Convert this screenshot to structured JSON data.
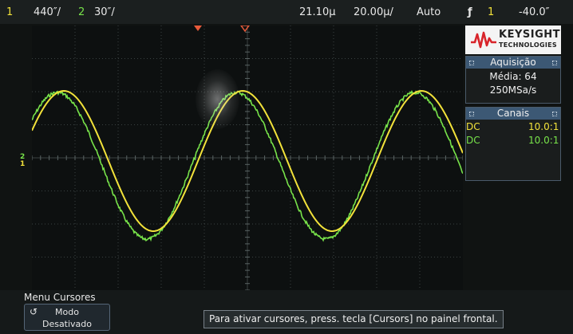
{
  "topbar": {
    "ch1_num": "1",
    "ch1_scale": "440″/",
    "ch2_num": "2",
    "ch2_scale": "30″/",
    "time_pos": "21.10µ",
    "time_scale": "20.00µ/",
    "run_mode": "Auto",
    "trig_icon": "ƒ",
    "trig_source": "1",
    "trig_level": "-40.0″"
  },
  "logo": {
    "name": "KEYSIGHT",
    "sub": "TECHNOLOGIES"
  },
  "acquisition": {
    "title": "Aquisição",
    "mode": "Média: 64",
    "rate": "250MSa/s"
  },
  "channels": {
    "title": "Canais",
    "rows": [
      {
        "coupling": "DC",
        "probe": "10.0:1",
        "color": "#f2e23a"
      },
      {
        "coupling": "DC",
        "probe": "10.0:1",
        "color": "#78e34a"
      }
    ]
  },
  "marker": {
    "ch2": "2",
    "ch1": "1"
  },
  "menu": {
    "title": "Menu Cursores",
    "softkey_label": "Modo",
    "softkey_value": "Desativado",
    "softkey_icon": "rotate-knob-icon"
  },
  "message": "Para ativar cursores, press. tecla [Cursors] no painel frontal.",
  "colors": {
    "ch1": "#f2e23a",
    "ch2": "#78e34a",
    "header": "#3c5874",
    "trigger_marker": "#e85a3a"
  }
}
